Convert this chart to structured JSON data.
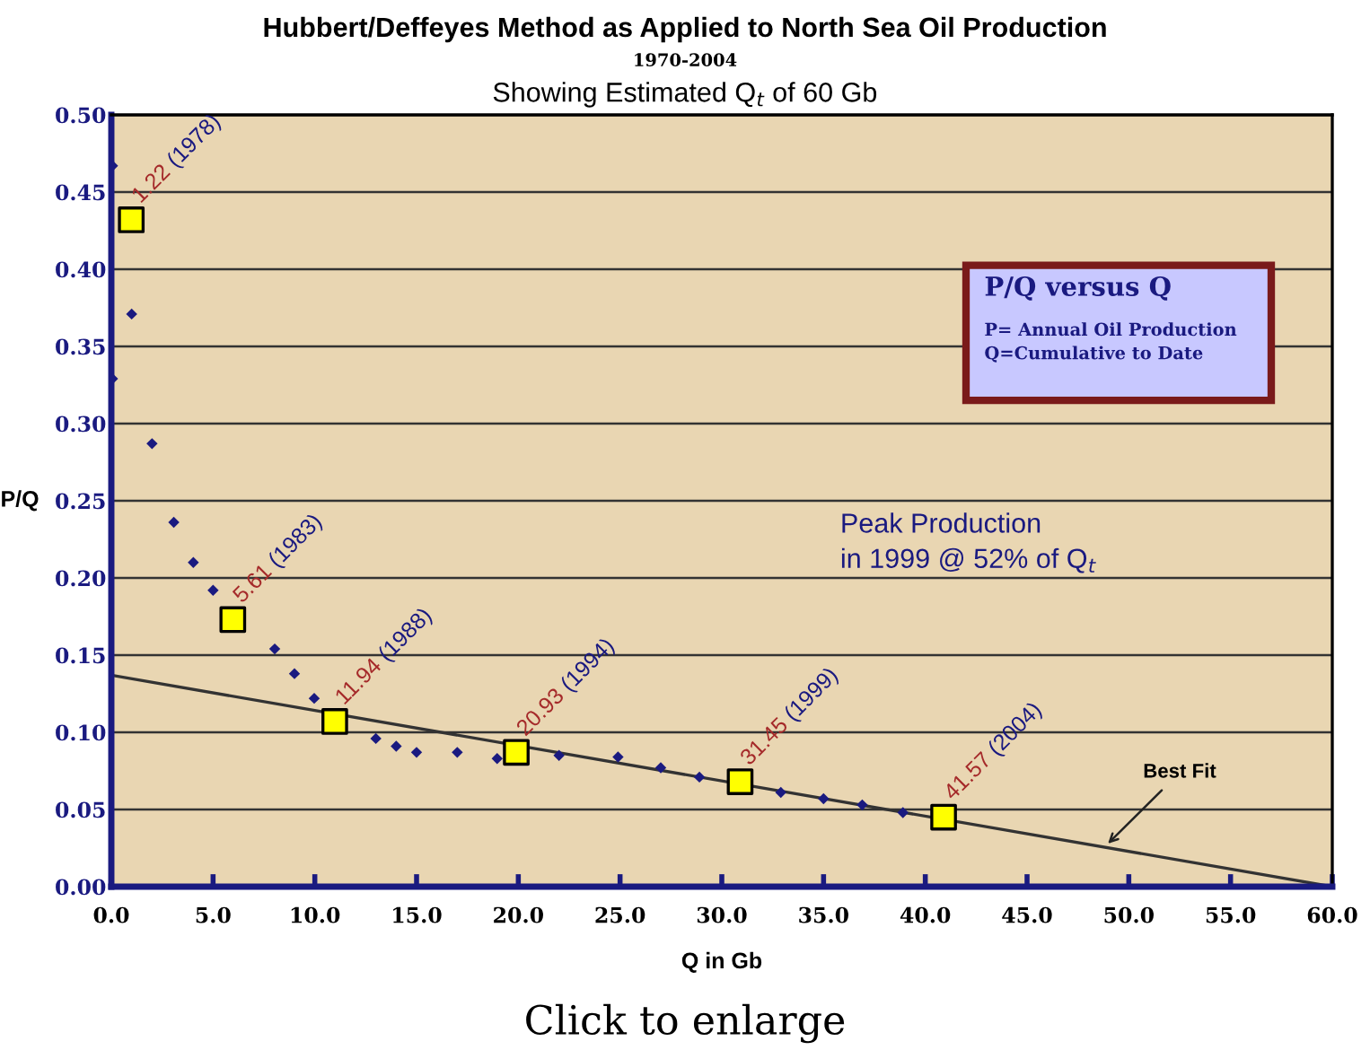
{
  "chart_data": {
    "type": "scatter",
    "title": "Hubbert/Deffeyes Method as Applied to North Sea Oil Production",
    "subtitle": "1970-2004",
    "xlabel": "Q in Gb",
    "ylabel": "P/Q",
    "series": [
      {
        "marker": "diamond",
        "color": "#1a1a80",
        "x": [
          0.06,
          0.06,
          1.0,
          2.0,
          3.07,
          4.03,
          5.0,
          8.03,
          9.0,
          9.97,
          13.0,
          14.0,
          15.0,
          17.0,
          18.96,
          22.0,
          24.9,
          27.0,
          28.9,
          32.9,
          35.0,
          36.9,
          38.9
        ],
        "values": [
          0.467,
          0.329,
          0.371,
          0.287,
          0.236,
          0.21,
          0.192,
          0.154,
          0.138,
          0.122,
          0.096,
          0.091,
          0.087,
          0.087,
          0.083,
          0.085,
          0.084,
          0.077,
          0.071,
          0.061,
          0.057,
          0.053,
          0.048
        ]
      },
      {
        "marker": "square",
        "color": "#ffff00",
        "x": [
          0.98,
          5.97,
          10.98,
          19.9,
          30.9,
          40.9
        ],
        "values": [
          0.432,
          0.173,
          0.107,
          0.087,
          0.068,
          0.045
        ]
      },
      {
        "type": "line",
        "color": "#333333",
        "line_style": "solid",
        "x": [
          0,
          60
        ],
        "values": [
          0.137,
          0
        ]
      }
    ],
    "xlim": [
      0,
      60
    ],
    "ylim": [
      0,
      0.5
    ],
    "xticks": [
      {
        "value": 0,
        "label": "0.0"
      },
      {
        "value": 5,
        "label": "5.0"
      },
      {
        "value": 10,
        "label": "10.0"
      },
      {
        "value": 15,
        "label": "15.0"
      },
      {
        "value": 20,
        "label": "20.0"
      },
      {
        "value": 25,
        "label": "25.0"
      },
      {
        "value": 30,
        "label": "30.0"
      },
      {
        "value": 35,
        "label": "35.0"
      },
      {
        "value": 40,
        "label": "40.0"
      },
      {
        "value": 45,
        "label": "45.0"
      },
      {
        "value": 50,
        "label": "50.0"
      },
      {
        "value": 55,
        "label": "55.0"
      },
      {
        "value": 60,
        "label": "60.0"
      }
    ],
    "yticks": [
      {
        "value": 0,
        "label": "0.00"
      },
      {
        "value": 0.05,
        "label": "0.05"
      },
      {
        "value": 0.1,
        "label": "0.10"
      },
      {
        "value": 0.15,
        "label": "0.15"
      },
      {
        "value": 0.2,
        "label": "0.20"
      },
      {
        "value": 0.25,
        "label": "0.25"
      },
      {
        "value": 0.3,
        "label": "0.30"
      },
      {
        "value": 0.35,
        "label": "0.35"
      },
      {
        "value": 0.4,
        "label": "0.40"
      },
      {
        "value": 0.45,
        "label": "0.45"
      },
      {
        "value": 0.5,
        "label": "0.50"
      }
    ],
    "grid": "y",
    "annotations": [
      {
        "text": "1.22 (1978)",
        "x": 0.98,
        "y": 0.432
      },
      {
        "text": "5.61 (1983)",
        "x": 5.97,
        "y": 0.173
      },
      {
        "text": "11.94 (1988)",
        "x": 10.98,
        "y": 0.107
      },
      {
        "text": "20.93 (1994)",
        "x": 19.9,
        "y": 0.0868
      },
      {
        "text": "31.45 (1999)",
        "x": 30.9,
        "y": 0.0678
      },
      {
        "text": "41.57 (2004)",
        "x": 40.9,
        "y": 0.0453
      },
      {
        "text": "Best Fit",
        "x": 48.8,
        "y": 0.0256
      },
      "P/Q versus Q",
      "P= Annual Oil Production\nQ=Cumulative to Date",
      "Peak Production\nin 1999 @ 52% of Q$_{t}$",
      "Showing Estimated Q$_{t}$ of 60 Gb",
      "Click to enlarge"
    ]
  }
}
